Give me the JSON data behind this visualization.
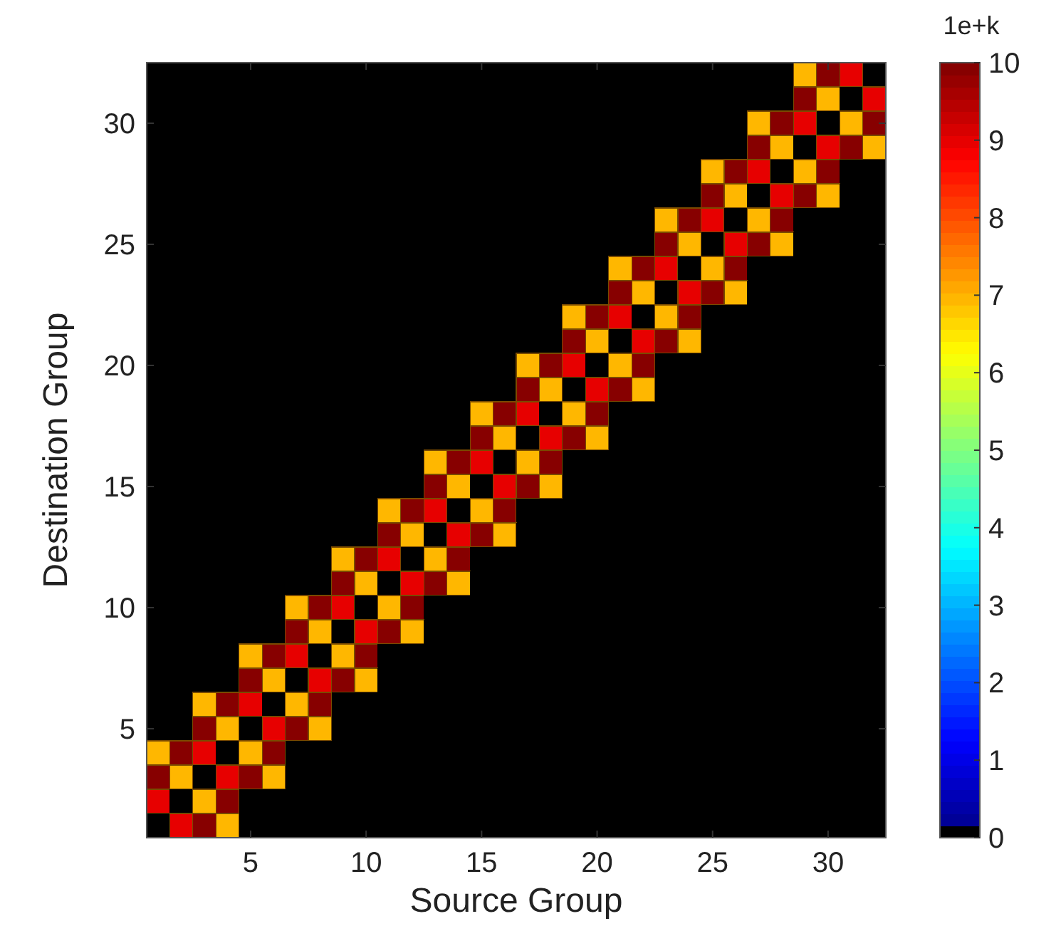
{
  "chart_data": {
    "type": "heatmap",
    "xlabel": "Source Group",
    "ylabel": "Destination Group",
    "clabel": "1e+k",
    "categories": [
      null,
      null,
      null,
      null,
      "5",
      null,
      null,
      null,
      null,
      "10",
      null,
      null,
      null,
      null,
      "15",
      null,
      null,
      null,
      null,
      "20",
      null,
      null,
      null,
      null,
      "25",
      null,
      null,
      null,
      null,
      "30",
      null,
      null
    ],
    "y_categories": [
      null,
      null,
      "30",
      null,
      null,
      null,
      null,
      "25",
      null,
      null,
      null,
      null,
      "20",
      null,
      null,
      null,
      null,
      "15",
      null,
      null,
      null,
      null,
      "10",
      null,
      null,
      null,
      null,
      "5",
      null,
      null,
      null,
      null
    ],
    "clim": [
      0,
      10
    ],
    "cticks": [
      0,
      1,
      2,
      3,
      4,
      5,
      6,
      7,
      8,
      9,
      10
    ],
    "cells": [
      [
        0,
        0,
        0,
        0,
        0,
        0,
        0,
        0,
        0,
        0,
        0,
        0,
        0,
        0,
        0,
        0,
        0,
        0,
        0,
        0,
        0,
        0,
        0,
        0,
        0,
        0,
        0,
        0,
        7,
        10,
        9,
        0
      ],
      [
        0,
        0,
        0,
        0,
        0,
        0,
        0,
        0,
        0,
        0,
        0,
        0,
        0,
        0,
        0,
        0,
        0,
        0,
        0,
        0,
        0,
        0,
        0,
        0,
        0,
        0,
        0,
        0,
        10,
        7,
        0,
        9
      ],
      [
        0,
        0,
        0,
        0,
        0,
        0,
        0,
        0,
        0,
        0,
        0,
        0,
        0,
        0,
        0,
        0,
        0,
        0,
        0,
        0,
        0,
        0,
        0,
        0,
        0,
        0,
        7,
        10,
        9,
        0,
        7,
        10
      ],
      [
        0,
        0,
        0,
        0,
        0,
        0,
        0,
        0,
        0,
        0,
        0,
        0,
        0,
        0,
        0,
        0,
        0,
        0,
        0,
        0,
        0,
        0,
        0,
        0,
        0,
        0,
        10,
        7,
        0,
        9,
        10,
        7
      ],
      [
        0,
        0,
        0,
        0,
        0,
        0,
        0,
        0,
        0,
        0,
        0,
        0,
        0,
        0,
        0,
        0,
        0,
        0,
        0,
        0,
        0,
        0,
        0,
        0,
        7,
        10,
        9,
        0,
        7,
        10,
        0,
        0
      ],
      [
        0,
        0,
        0,
        0,
        0,
        0,
        0,
        0,
        0,
        0,
        0,
        0,
        0,
        0,
        0,
        0,
        0,
        0,
        0,
        0,
        0,
        0,
        0,
        0,
        10,
        7,
        0,
        9,
        10,
        7,
        0,
        0
      ],
      [
        0,
        0,
        0,
        0,
        0,
        0,
        0,
        0,
        0,
        0,
        0,
        0,
        0,
        0,
        0,
        0,
        0,
        0,
        0,
        0,
        0,
        0,
        7,
        10,
        9,
        0,
        7,
        10,
        0,
        0,
        0,
        0
      ],
      [
        0,
        0,
        0,
        0,
        0,
        0,
        0,
        0,
        0,
        0,
        0,
        0,
        0,
        0,
        0,
        0,
        0,
        0,
        0,
        0,
        0,
        0,
        10,
        7,
        0,
        9,
        10,
        7,
        0,
        0,
        0,
        0
      ],
      [
        0,
        0,
        0,
        0,
        0,
        0,
        0,
        0,
        0,
        0,
        0,
        0,
        0,
        0,
        0,
        0,
        0,
        0,
        0,
        0,
        7,
        10,
        9,
        0,
        7,
        10,
        0,
        0,
        0,
        0,
        0,
        0
      ],
      [
        0,
        0,
        0,
        0,
        0,
        0,
        0,
        0,
        0,
        0,
        0,
        0,
        0,
        0,
        0,
        0,
        0,
        0,
        0,
        0,
        10,
        7,
        0,
        9,
        10,
        7,
        0,
        0,
        0,
        0,
        0,
        0
      ],
      [
        0,
        0,
        0,
        0,
        0,
        0,
        0,
        0,
        0,
        0,
        0,
        0,
        0,
        0,
        0,
        0,
        0,
        0,
        7,
        10,
        9,
        0,
        7,
        10,
        0,
        0,
        0,
        0,
        0,
        0,
        0,
        0
      ],
      [
        0,
        0,
        0,
        0,
        0,
        0,
        0,
        0,
        0,
        0,
        0,
        0,
        0,
        0,
        0,
        0,
        0,
        0,
        10,
        7,
        0,
        9,
        10,
        7,
        0,
        0,
        0,
        0,
        0,
        0,
        0,
        0
      ],
      [
        0,
        0,
        0,
        0,
        0,
        0,
        0,
        0,
        0,
        0,
        0,
        0,
        0,
        0,
        0,
        0,
        7,
        10,
        9,
        0,
        7,
        10,
        0,
        0,
        0,
        0,
        0,
        0,
        0,
        0,
        0,
        0
      ],
      [
        0,
        0,
        0,
        0,
        0,
        0,
        0,
        0,
        0,
        0,
        0,
        0,
        0,
        0,
        0,
        0,
        10,
        7,
        0,
        9,
        10,
        7,
        0,
        0,
        0,
        0,
        0,
        0,
        0,
        0,
        0,
        0
      ],
      [
        0,
        0,
        0,
        0,
        0,
        0,
        0,
        0,
        0,
        0,
        0,
        0,
        0,
        0,
        7,
        10,
        9,
        0,
        7,
        10,
        0,
        0,
        0,
        0,
        0,
        0,
        0,
        0,
        0,
        0,
        0,
        0
      ],
      [
        0,
        0,
        0,
        0,
        0,
        0,
        0,
        0,
        0,
        0,
        0,
        0,
        0,
        0,
        10,
        7,
        0,
        9,
        10,
        7,
        0,
        0,
        0,
        0,
        0,
        0,
        0,
        0,
        0,
        0,
        0,
        0
      ],
      [
        0,
        0,
        0,
        0,
        0,
        0,
        0,
        0,
        0,
        0,
        0,
        0,
        7,
        10,
        9,
        0,
        7,
        10,
        0,
        0,
        0,
        0,
        0,
        0,
        0,
        0,
        0,
        0,
        0,
        0,
        0,
        0
      ],
      [
        0,
        0,
        0,
        0,
        0,
        0,
        0,
        0,
        0,
        0,
        0,
        0,
        10,
        7,
        0,
        9,
        10,
        7,
        0,
        0,
        0,
        0,
        0,
        0,
        0,
        0,
        0,
        0,
        0,
        0,
        0,
        0
      ],
      [
        0,
        0,
        0,
        0,
        0,
        0,
        0,
        0,
        0,
        0,
        7,
        10,
        9,
        0,
        7,
        10,
        0,
        0,
        0,
        0,
        0,
        0,
        0,
        0,
        0,
        0,
        0,
        0,
        0,
        0,
        0,
        0
      ],
      [
        0,
        0,
        0,
        0,
        0,
        0,
        0,
        0,
        0,
        0,
        10,
        7,
        0,
        9,
        10,
        7,
        0,
        0,
        0,
        0,
        0,
        0,
        0,
        0,
        0,
        0,
        0,
        0,
        0,
        0,
        0,
        0
      ],
      [
        0,
        0,
        0,
        0,
        0,
        0,
        0,
        0,
        7,
        10,
        9,
        0,
        7,
        10,
        0,
        0,
        0,
        0,
        0,
        0,
        0,
        0,
        0,
        0,
        0,
        0,
        0,
        0,
        0,
        0,
        0,
        0
      ],
      [
        0,
        0,
        0,
        0,
        0,
        0,
        0,
        0,
        10,
        7,
        0,
        9,
        10,
        7,
        0,
        0,
        0,
        0,
        0,
        0,
        0,
        0,
        0,
        0,
        0,
        0,
        0,
        0,
        0,
        0,
        0,
        0
      ],
      [
        0,
        0,
        0,
        0,
        0,
        0,
        7,
        10,
        9,
        0,
        7,
        10,
        0,
        0,
        0,
        0,
        0,
        0,
        0,
        0,
        0,
        0,
        0,
        0,
        0,
        0,
        0,
        0,
        0,
        0,
        0,
        0
      ],
      [
        0,
        0,
        0,
        0,
        0,
        0,
        10,
        7,
        0,
        9,
        10,
        7,
        0,
        0,
        0,
        0,
        0,
        0,
        0,
        0,
        0,
        0,
        0,
        0,
        0,
        0,
        0,
        0,
        0,
        0,
        0,
        0
      ],
      [
        0,
        0,
        0,
        0,
        7,
        10,
        9,
        0,
        7,
        10,
        0,
        0,
        0,
        0,
        0,
        0,
        0,
        0,
        0,
        0,
        0,
        0,
        0,
        0,
        0,
        0,
        0,
        0,
        0,
        0,
        0,
        0
      ],
      [
        0,
        0,
        0,
        0,
        10,
        7,
        0,
        9,
        10,
        7,
        0,
        0,
        0,
        0,
        0,
        0,
        0,
        0,
        0,
        0,
        0,
        0,
        0,
        0,
        0,
        0,
        0,
        0,
        0,
        0,
        0,
        0
      ],
      [
        0,
        0,
        7,
        10,
        9,
        0,
        7,
        10,
        0,
        0,
        0,
        0,
        0,
        0,
        0,
        0,
        0,
        0,
        0,
        0,
        0,
        0,
        0,
        0,
        0,
        0,
        0,
        0,
        0,
        0,
        0,
        0
      ],
      [
        0,
        0,
        10,
        7,
        0,
        9,
        10,
        7,
        0,
        0,
        0,
        0,
        0,
        0,
        0,
        0,
        0,
        0,
        0,
        0,
        0,
        0,
        0,
        0,
        0,
        0,
        0,
        0,
        0,
        0,
        0,
        0
      ],
      [
        7,
        10,
        9,
        0,
        7,
        10,
        0,
        0,
        0,
        0,
        0,
        0,
        0,
        0,
        0,
        0,
        0,
        0,
        0,
        0,
        0,
        0,
        0,
        0,
        0,
        0,
        0,
        0,
        0,
        0,
        0,
        0
      ],
      [
        10,
        7,
        0,
        9,
        10,
        7,
        0,
        0,
        0,
        0,
        0,
        0,
        0,
        0,
        0,
        0,
        0,
        0,
        0,
        0,
        0,
        0,
        0,
        0,
        0,
        0,
        0,
        0,
        0,
        0,
        0,
        0
      ],
      [
        9,
        0,
        7,
        10,
        0,
        0,
        0,
        0,
        0,
        0,
        0,
        0,
        0,
        0,
        0,
        0,
        0,
        0,
        0,
        0,
        0,
        0,
        0,
        0,
        0,
        0,
        0,
        0,
        0,
        0,
        0,
        0
      ],
      [
        0,
        9,
        10,
        7,
        0,
        0,
        0,
        0,
        0,
        0,
        0,
        0,
        0,
        0,
        0,
        0,
        0,
        0,
        0,
        0,
        0,
        0,
        0,
        0,
        0,
        0,
        0,
        0,
        0,
        0,
        0,
        0
      ]
    ]
  }
}
